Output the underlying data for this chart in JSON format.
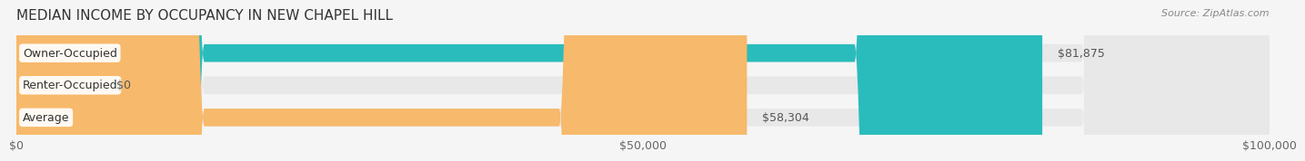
{
  "title": "MEDIAN INCOME BY OCCUPANCY IN NEW CHAPEL HILL",
  "source": "Source: ZipAtlas.com",
  "categories": [
    "Owner-Occupied",
    "Renter-Occupied",
    "Average"
  ],
  "values": [
    81875,
    0,
    58304
  ],
  "labels": [
    "$81,875",
    "$0",
    "$58,304"
  ],
  "colors": [
    "#2abcbc",
    "#b39ddb",
    "#f7b96b"
  ],
  "bar_height": 0.55,
  "xlim": [
    0,
    100000
  ],
  "xticks": [
    0,
    50000,
    100000
  ],
  "xticklabels": [
    "$0",
    "$50,000",
    "$100,000"
  ],
  "bg_color": "#f5f5f5",
  "bar_bg_color": "#e8e8e8",
  "title_fontsize": 11,
  "label_fontsize": 9,
  "tick_fontsize": 9
}
